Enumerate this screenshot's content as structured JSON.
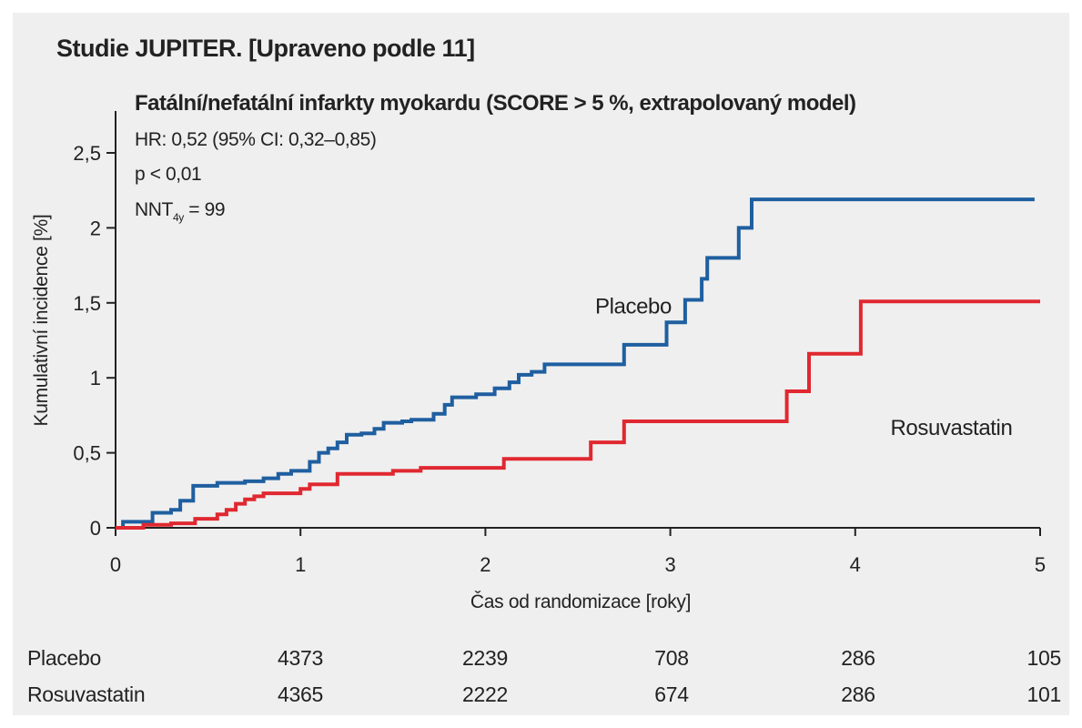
{
  "chart_data": {
    "type": "line",
    "step": true,
    "title": "Studie JUPITER. [Upraveno podle 11]",
    "subtitle": "Fatální/nefatální infarkty myokardu (SCORE > 5 %, extrapolovaný model)",
    "stats": {
      "hr": "HR: 0,52 (95% CI: 0,32–0,85)",
      "p": "p < 0,01",
      "nnt_prefix": "NNT",
      "nnt_sub": "4y",
      "nnt_suffix": " = 99"
    },
    "xlabel": "Čas od randomizace [roky]",
    "ylabel": "Kumulativní incidence [%]",
    "xlim": [
      0,
      5
    ],
    "ylim": [
      0,
      2.75
    ],
    "x_ticks": [
      0,
      1,
      2,
      3,
      4,
      5
    ],
    "x_tick_labels": [
      "0",
      "1",
      "2",
      "3",
      "4",
      "5"
    ],
    "y_ticks": [
      0,
      0.5,
      1,
      1.5,
      2,
      2.5
    ],
    "y_tick_labels": [
      "0",
      "0,5",
      "1",
      "1,5",
      "2",
      "2,5"
    ],
    "series": [
      {
        "name": "Placebo",
        "color": "#1f5fa0",
        "points": [
          [
            0,
            0
          ],
          [
            0.04,
            0
          ],
          [
            0.04,
            0.04
          ],
          [
            0.2,
            0.04
          ],
          [
            0.2,
            0.1
          ],
          [
            0.3,
            0.1
          ],
          [
            0.3,
            0.12
          ],
          [
            0.35,
            0.12
          ],
          [
            0.35,
            0.18
          ],
          [
            0.42,
            0.18
          ],
          [
            0.42,
            0.28
          ],
          [
            0.55,
            0.28
          ],
          [
            0.55,
            0.3
          ],
          [
            0.7,
            0.3
          ],
          [
            0.7,
            0.31
          ],
          [
            0.8,
            0.31
          ],
          [
            0.8,
            0.33
          ],
          [
            0.88,
            0.33
          ],
          [
            0.88,
            0.36
          ],
          [
            0.95,
            0.36
          ],
          [
            0.95,
            0.38
          ],
          [
            1.05,
            0.38
          ],
          [
            1.05,
            0.44
          ],
          [
            1.1,
            0.44
          ],
          [
            1.1,
            0.5
          ],
          [
            1.15,
            0.5
          ],
          [
            1.15,
            0.53
          ],
          [
            1.2,
            0.53
          ],
          [
            1.2,
            0.57
          ],
          [
            1.25,
            0.57
          ],
          [
            1.25,
            0.62
          ],
          [
            1.33,
            0.62
          ],
          [
            1.33,
            0.63
          ],
          [
            1.4,
            0.63
          ],
          [
            1.4,
            0.66
          ],
          [
            1.45,
            0.66
          ],
          [
            1.45,
            0.7
          ],
          [
            1.55,
            0.7
          ],
          [
            1.55,
            0.71
          ],
          [
            1.6,
            0.71
          ],
          [
            1.6,
            0.72
          ],
          [
            1.72,
            0.72
          ],
          [
            1.72,
            0.76
          ],
          [
            1.78,
            0.76
          ],
          [
            1.78,
            0.82
          ],
          [
            1.82,
            0.82
          ],
          [
            1.82,
            0.87
          ],
          [
            1.95,
            0.87
          ],
          [
            1.95,
            0.89
          ],
          [
            2.05,
            0.89
          ],
          [
            2.05,
            0.93
          ],
          [
            2.13,
            0.93
          ],
          [
            2.13,
            0.97
          ],
          [
            2.18,
            0.97
          ],
          [
            2.18,
            1.02
          ],
          [
            2.25,
            1.02
          ],
          [
            2.25,
            1.04
          ],
          [
            2.32,
            1.04
          ],
          [
            2.32,
            1.09
          ],
          [
            2.75,
            1.09
          ],
          [
            2.75,
            1.22
          ],
          [
            2.98,
            1.22
          ],
          [
            2.98,
            1.37
          ],
          [
            3.08,
            1.37
          ],
          [
            3.08,
            1.52
          ],
          [
            3.17,
            1.52
          ],
          [
            3.17,
            1.66
          ],
          [
            3.2,
            1.66
          ],
          [
            3.2,
            1.8
          ],
          [
            3.37,
            1.8
          ],
          [
            3.37,
            2.0
          ],
          [
            3.44,
            2.0
          ],
          [
            3.44,
            2.19
          ],
          [
            4.97,
            2.19
          ]
        ],
        "label_at": [
          2.8,
          1.43
        ]
      },
      {
        "name": "Rosuvastatin",
        "color": "#e02830",
        "points": [
          [
            0,
            0
          ],
          [
            0.15,
            0
          ],
          [
            0.15,
            0.02
          ],
          [
            0.3,
            0.02
          ],
          [
            0.3,
            0.03
          ],
          [
            0.43,
            0.03
          ],
          [
            0.43,
            0.06
          ],
          [
            0.55,
            0.06
          ],
          [
            0.55,
            0.09
          ],
          [
            0.6,
            0.09
          ],
          [
            0.6,
            0.12
          ],
          [
            0.65,
            0.12
          ],
          [
            0.65,
            0.16
          ],
          [
            0.7,
            0.16
          ],
          [
            0.7,
            0.19
          ],
          [
            0.75,
            0.19
          ],
          [
            0.75,
            0.21
          ],
          [
            0.8,
            0.21
          ],
          [
            0.8,
            0.23
          ],
          [
            1.0,
            0.23
          ],
          [
            1.0,
            0.26
          ],
          [
            1.05,
            0.26
          ],
          [
            1.05,
            0.29
          ],
          [
            1.2,
            0.29
          ],
          [
            1.2,
            0.36
          ],
          [
            1.5,
            0.36
          ],
          [
            1.5,
            0.38
          ],
          [
            1.65,
            0.38
          ],
          [
            1.65,
            0.4
          ],
          [
            2.1,
            0.4
          ],
          [
            2.1,
            0.46
          ],
          [
            2.57,
            0.46
          ],
          [
            2.57,
            0.57
          ],
          [
            2.75,
            0.57
          ],
          [
            2.75,
            0.71
          ],
          [
            3.63,
            0.71
          ],
          [
            3.63,
            0.91
          ],
          [
            3.75,
            0.91
          ],
          [
            3.75,
            1.16
          ],
          [
            4.03,
            1.16
          ],
          [
            4.03,
            1.51
          ],
          [
            5.0,
            1.51
          ]
        ],
        "label_at": [
          4.52,
          0.62
        ]
      }
    ]
  },
  "risk_table": {
    "rows": [
      {
        "label": "Placebo",
        "values": [
          "4373",
          "2239",
          "708",
          "286",
          "105"
        ]
      },
      {
        "label": "Rosuvastatin",
        "values": [
          "4365",
          "2222",
          "674",
          "286",
          "101"
        ]
      }
    ]
  }
}
